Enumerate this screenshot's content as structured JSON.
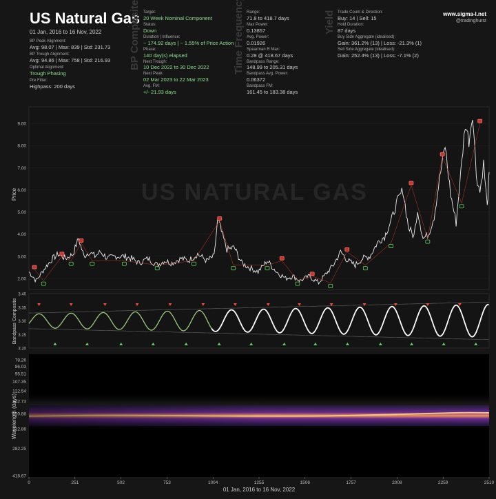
{
  "header": {
    "title": "US Natural Gas",
    "date_range": "01 Jan, 2016 to 16 Nov, 2022",
    "bp_peak_label": "BP Peak Alignment:",
    "bp_peak_value": "Avg: 98.07 | Max: 839 | Std: 231.73",
    "bp_trough_label": "BP Trough Alignment:",
    "bp_trough_value": "Avg: 94.86 | Max: 758 | Std: 216.93",
    "optimal_label": "Optimal Alignment:",
    "optimal_value": "Trough Phasing",
    "prefilter_label": "Pre Filter:",
    "prefilter_value": "Highpass: 200 days"
  },
  "bp_composite": {
    "section_title": "BP Composite",
    "target_label": "Target:",
    "target_value": "20 Week Nominal Component",
    "status_label": "Status:",
    "status_value": "Down",
    "duration_label": "Duration | Influence:",
    "duration_value": "~ 174.92 days | ~ 1.55% of Price Action",
    "phase_label": "Phase:",
    "phase_value": "140 day(s) elapsed",
    "next_trough_label": "Next Trough:",
    "next_trough_value": "10 Dec 2022 to 30 Dec 2022",
    "next_peak_label": "Next Peak:",
    "next_peak_value": "02 Mar 2023 to 22 Mar 2023",
    "avg_fm_label": "Avg. FM:",
    "avg_fm_value": "+/- 21.93 days"
  },
  "time_frequency": {
    "section_title": "Time Frequency",
    "range_label": "Range:",
    "range_value": "71.8 to 418.7 days",
    "max_power_label": "Max Power:",
    "max_power_value": "0.13857",
    "avg_power_label": "Avg. Power:",
    "avg_power_value": "0.01926",
    "spearman_label": "Spearman R Max:",
    "spearman_value": "0.28 @ 418.67 days",
    "bandpass_range_label": "Bandpass Range:",
    "bandpass_range_value": "148.99 to 205.31 days",
    "bandpass_avg_label": "Bandpass Avg. Power:",
    "bandpass_avg_value": "0.06372",
    "bandpass_fm_label": "Bandpass FM:",
    "bandpass_fm_value": "161.45 to 183.38 days"
  },
  "yield": {
    "section_title": "Yield",
    "trade_label": "Trade Count & Direction:",
    "trade_value": "Buy: 14 | Sell: 15",
    "hold_label": "Hold Duration:",
    "hold_value": "87 days",
    "buy_label": "Buy Side Aggregate (idealised):",
    "buy_value": "Gain: 361.2% (13) | Loss: -21.3% (1)",
    "sell_label": "Sell Side Aggregate (idealised):",
    "sell_value": "Gain: 252.4% (13) | Loss: -7.1% (2)"
  },
  "brand": {
    "site": "www.sigma-l.net",
    "handle": "@tradinghurst"
  },
  "watermark": "US NATURAL GAS",
  "x_axis_title": "01 Jan, 2016 to 16 Nov, 2022",
  "chart_data": [
    {
      "type": "line",
      "name": "price",
      "ylabel": "Price",
      "ylim": [
        1.5,
        9.75
      ],
      "yticks": [
        "2.00",
        "3.00",
        "4.00",
        "5.00",
        "6.00",
        "7.00",
        "8.00",
        "9.00"
      ],
      "xlim": [
        0,
        2510
      ],
      "x": [
        0,
        40,
        90,
        130,
        160,
        200,
        240,
        270,
        300,
        330,
        360,
        390,
        430,
        470,
        520,
        560,
        600,
        650,
        700,
        740,
        780,
        830,
        870,
        920,
        970,
        1010,
        1030,
        1050,
        1080,
        1120,
        1160,
        1200,
        1250,
        1300,
        1350,
        1400,
        1440,
        1480,
        1530,
        1580,
        1620,
        1660,
        1700,
        1740,
        1780,
        1820,
        1860,
        1900,
        1940,
        1980,
        2010,
        2040,
        2070,
        2100,
        2120,
        2150,
        2180,
        2210,
        2240,
        2270,
        2300,
        2330,
        2360,
        2380,
        2400,
        2420,
        2440,
        2460,
        2480,
        2500,
        2510
      ],
      "y": [
        2.3,
        1.9,
        2.5,
        2.9,
        3.1,
        2.9,
        3.1,
        3.8,
        3.0,
        3.2,
        3.0,
        3.2,
        2.9,
        3.0,
        3.0,
        2.9,
        2.7,
        2.9,
        2.6,
        2.8,
        2.7,
        2.9,
        2.8,
        3.1,
        2.8,
        3.0,
        4.7,
        4.1,
        3.3,
        3.4,
        2.7,
        2.5,
        2.3,
        2.8,
        2.3,
        2.0,
        2.1,
        1.9,
        2.1,
        1.8,
        2.2,
        2.6,
        3.2,
        2.8,
        2.6,
        2.9,
        3.0,
        3.6,
        3.9,
        4.7,
        5.5,
        6.0,
        4.3,
        3.9,
        5.1,
        3.8,
        4.0,
        4.8,
        6.5,
        8.0,
        5.8,
        4.5,
        7.2,
        9.0,
        8.2,
        9.5,
        6.7,
        5.9,
        7.2,
        5.2,
        6.8
      ],
      "markers": [
        {
          "kind": "peak",
          "x": 30,
          "y": 2.4
        },
        {
          "kind": "trough",
          "x": 80,
          "y": 1.9
        },
        {
          "kind": "peak",
          "x": 180,
          "y": 3.0
        },
        {
          "kind": "trough",
          "x": 230,
          "y": 2.8
        },
        {
          "kind": "peak",
          "x": 285,
          "y": 3.6
        },
        {
          "kind": "trough",
          "x": 345,
          "y": 2.8
        },
        {
          "kind": "trough",
          "x": 520,
          "y": 2.8
        },
        {
          "kind": "trough",
          "x": 700,
          "y": 2.6
        },
        {
          "kind": "trough",
          "x": 900,
          "y": 2.8
        },
        {
          "kind": "peak",
          "x": 1040,
          "y": 4.6
        },
        {
          "kind": "trough",
          "x": 1115,
          "y": 2.6
        },
        {
          "kind": "trough",
          "x": 1300,
          "y": 2.6
        },
        {
          "kind": "peak",
          "x": 1380,
          "y": 2.8
        },
        {
          "kind": "trough",
          "x": 1465,
          "y": 1.9
        },
        {
          "kind": "peak",
          "x": 1545,
          "y": 2.1
        },
        {
          "kind": "trough",
          "x": 1645,
          "y": 1.8
        },
        {
          "kind": "peak",
          "x": 1735,
          "y": 3.2
        },
        {
          "kind": "trough",
          "x": 1835,
          "y": 2.6
        },
        {
          "kind": "trough",
          "x": 1975,
          "y": 3.6
        },
        {
          "kind": "peak",
          "x": 2085,
          "y": 6.2
        },
        {
          "kind": "trough",
          "x": 2175,
          "y": 3.8
        },
        {
          "kind": "peak",
          "x": 2255,
          "y": 7.5
        },
        {
          "kind": "trough",
          "x": 2360,
          "y": 5.4
        },
        {
          "kind": "peak",
          "x": 2460,
          "y": 9.0
        }
      ]
    },
    {
      "type": "line",
      "name": "bandpass",
      "ylabel": "Bandpass Composite",
      "ylim": [
        3.2,
        3.4
      ],
      "yticks": [
        "3.20",
        "3.25",
        "3.30",
        "3.35",
        "3.40"
      ],
      "period_days": 175,
      "center": 3.3,
      "amp_start": 0.025,
      "amp_end": 0.06,
      "peaks_x": [
        55,
        230,
        415,
        590,
        770,
        950,
        1125,
        1305,
        1475,
        1650,
        1830,
        2000,
        2175,
        2350,
        2520
      ]
    },
    {
      "type": "heatmap",
      "name": "time_frequency",
      "ylabel": "Wavelength (days)",
      "yticks": [
        "78.26",
        "86.03",
        "95.51",
        "107.35",
        "122.54",
        "142.73",
        "170.88",
        "212.88",
        "282.25",
        "418.67"
      ],
      "xticks": [
        "0",
        "251",
        "502",
        "753",
        "1004",
        "1255",
        "1506",
        "1757",
        "2008",
        "2259",
        "2510"
      ],
      "band_center_days": 175,
      "band_range_days": [
        148.99,
        205.31
      ]
    }
  ]
}
